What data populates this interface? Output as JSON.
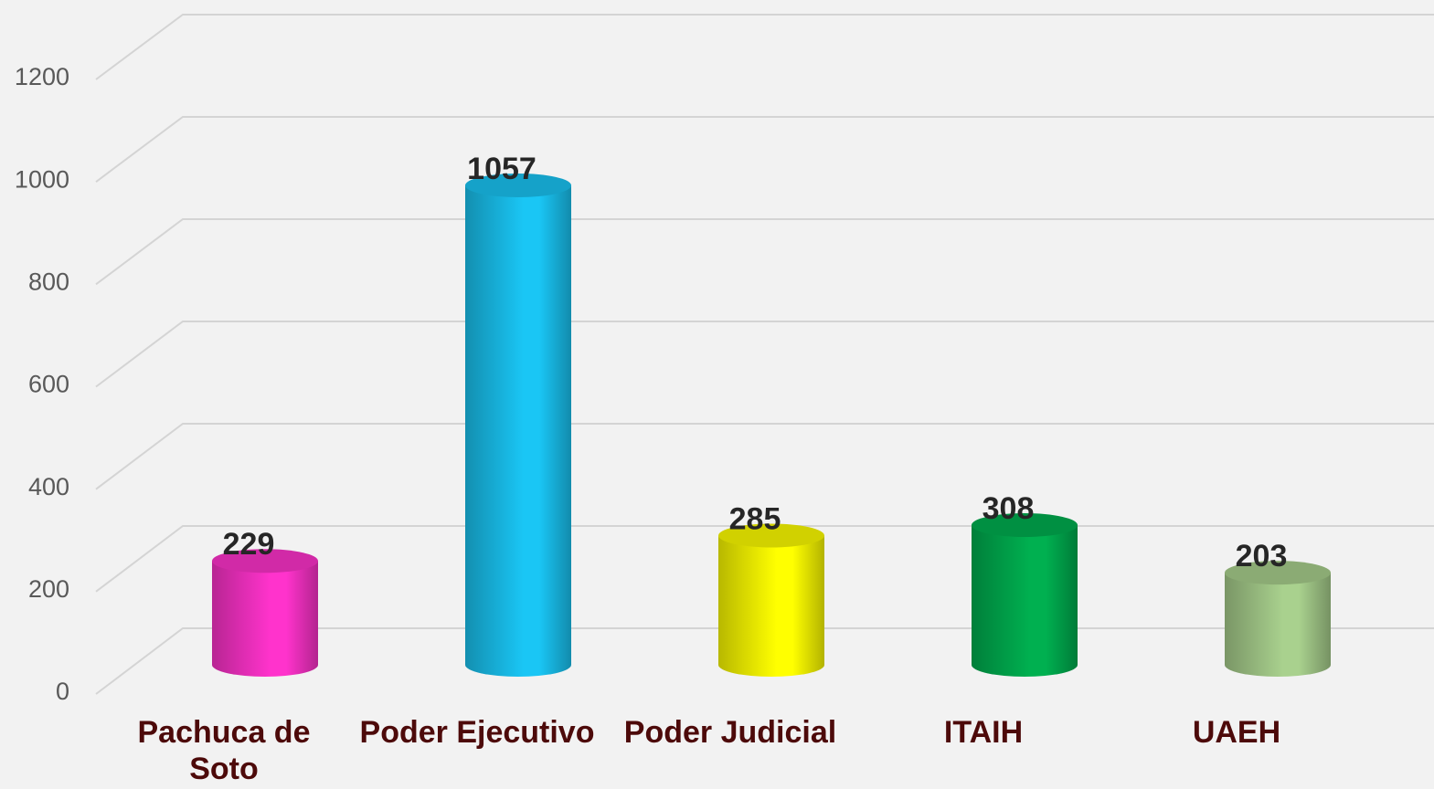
{
  "chart_data": {
    "type": "bar3d",
    "categories": [
      "Pachuca de Soto",
      "Poder Ejecutivo",
      "Poder Judicial",
      "ITAIH",
      "UAEH"
    ],
    "values": [
      229,
      1057,
      285,
      308,
      203
    ],
    "colors": [
      "#ff33cc",
      "#1ac6f5",
      "#ffff00",
      "#00b050",
      "#a9d18e"
    ],
    "ylim": [
      0,
      1200
    ],
    "yticks": [
      0,
      200,
      400,
      600,
      800,
      1000,
      1200
    ],
    "grid": true
  }
}
